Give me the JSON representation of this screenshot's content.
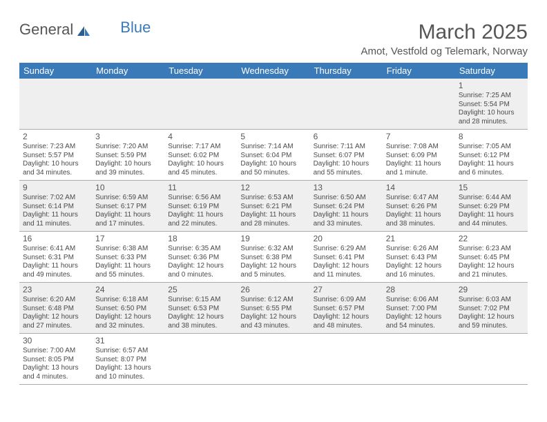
{
  "logo": {
    "general": "General",
    "blue": "Blue"
  },
  "title": "March 2025",
  "location": "Amot, Vestfold og Telemark, Norway",
  "day_headers": [
    "Sunday",
    "Monday",
    "Tuesday",
    "Wednesday",
    "Thursday",
    "Friday",
    "Saturday"
  ],
  "colors": {
    "header_bg": "#3a7ab8",
    "header_text": "#ffffff",
    "alt_row_bg": "#efefef",
    "text": "#4a4a4a",
    "rule": "#aaaaaa"
  },
  "weeks": [
    [
      null,
      null,
      null,
      null,
      null,
      null,
      {
        "n": "1",
        "sunrise": "Sunrise: 7:25 AM",
        "sunset": "Sunset: 5:54 PM",
        "daylight": "Daylight: 10 hours and 28 minutes."
      }
    ],
    [
      {
        "n": "2",
        "sunrise": "Sunrise: 7:23 AM",
        "sunset": "Sunset: 5:57 PM",
        "daylight": "Daylight: 10 hours and 34 minutes."
      },
      {
        "n": "3",
        "sunrise": "Sunrise: 7:20 AM",
        "sunset": "Sunset: 5:59 PM",
        "daylight": "Daylight: 10 hours and 39 minutes."
      },
      {
        "n": "4",
        "sunrise": "Sunrise: 7:17 AM",
        "sunset": "Sunset: 6:02 PM",
        "daylight": "Daylight: 10 hours and 45 minutes."
      },
      {
        "n": "5",
        "sunrise": "Sunrise: 7:14 AM",
        "sunset": "Sunset: 6:04 PM",
        "daylight": "Daylight: 10 hours and 50 minutes."
      },
      {
        "n": "6",
        "sunrise": "Sunrise: 7:11 AM",
        "sunset": "Sunset: 6:07 PM",
        "daylight": "Daylight: 10 hours and 55 minutes."
      },
      {
        "n": "7",
        "sunrise": "Sunrise: 7:08 AM",
        "sunset": "Sunset: 6:09 PM",
        "daylight": "Daylight: 11 hours and 1 minute."
      },
      {
        "n": "8",
        "sunrise": "Sunrise: 7:05 AM",
        "sunset": "Sunset: 6:12 PM",
        "daylight": "Daylight: 11 hours and 6 minutes."
      }
    ],
    [
      {
        "n": "9",
        "sunrise": "Sunrise: 7:02 AM",
        "sunset": "Sunset: 6:14 PM",
        "daylight": "Daylight: 11 hours and 11 minutes."
      },
      {
        "n": "10",
        "sunrise": "Sunrise: 6:59 AM",
        "sunset": "Sunset: 6:17 PM",
        "daylight": "Daylight: 11 hours and 17 minutes."
      },
      {
        "n": "11",
        "sunrise": "Sunrise: 6:56 AM",
        "sunset": "Sunset: 6:19 PM",
        "daylight": "Daylight: 11 hours and 22 minutes."
      },
      {
        "n": "12",
        "sunrise": "Sunrise: 6:53 AM",
        "sunset": "Sunset: 6:21 PM",
        "daylight": "Daylight: 11 hours and 28 minutes."
      },
      {
        "n": "13",
        "sunrise": "Sunrise: 6:50 AM",
        "sunset": "Sunset: 6:24 PM",
        "daylight": "Daylight: 11 hours and 33 minutes."
      },
      {
        "n": "14",
        "sunrise": "Sunrise: 6:47 AM",
        "sunset": "Sunset: 6:26 PM",
        "daylight": "Daylight: 11 hours and 38 minutes."
      },
      {
        "n": "15",
        "sunrise": "Sunrise: 6:44 AM",
        "sunset": "Sunset: 6:29 PM",
        "daylight": "Daylight: 11 hours and 44 minutes."
      }
    ],
    [
      {
        "n": "16",
        "sunrise": "Sunrise: 6:41 AM",
        "sunset": "Sunset: 6:31 PM",
        "daylight": "Daylight: 11 hours and 49 minutes."
      },
      {
        "n": "17",
        "sunrise": "Sunrise: 6:38 AM",
        "sunset": "Sunset: 6:33 PM",
        "daylight": "Daylight: 11 hours and 55 minutes."
      },
      {
        "n": "18",
        "sunrise": "Sunrise: 6:35 AM",
        "sunset": "Sunset: 6:36 PM",
        "daylight": "Daylight: 12 hours and 0 minutes."
      },
      {
        "n": "19",
        "sunrise": "Sunrise: 6:32 AM",
        "sunset": "Sunset: 6:38 PM",
        "daylight": "Daylight: 12 hours and 5 minutes."
      },
      {
        "n": "20",
        "sunrise": "Sunrise: 6:29 AM",
        "sunset": "Sunset: 6:41 PM",
        "daylight": "Daylight: 12 hours and 11 minutes."
      },
      {
        "n": "21",
        "sunrise": "Sunrise: 6:26 AM",
        "sunset": "Sunset: 6:43 PM",
        "daylight": "Daylight: 12 hours and 16 minutes."
      },
      {
        "n": "22",
        "sunrise": "Sunrise: 6:23 AM",
        "sunset": "Sunset: 6:45 PM",
        "daylight": "Daylight: 12 hours and 21 minutes."
      }
    ],
    [
      {
        "n": "23",
        "sunrise": "Sunrise: 6:20 AM",
        "sunset": "Sunset: 6:48 PM",
        "daylight": "Daylight: 12 hours and 27 minutes."
      },
      {
        "n": "24",
        "sunrise": "Sunrise: 6:18 AM",
        "sunset": "Sunset: 6:50 PM",
        "daylight": "Daylight: 12 hours and 32 minutes."
      },
      {
        "n": "25",
        "sunrise": "Sunrise: 6:15 AM",
        "sunset": "Sunset: 6:53 PM",
        "daylight": "Daylight: 12 hours and 38 minutes."
      },
      {
        "n": "26",
        "sunrise": "Sunrise: 6:12 AM",
        "sunset": "Sunset: 6:55 PM",
        "daylight": "Daylight: 12 hours and 43 minutes."
      },
      {
        "n": "27",
        "sunrise": "Sunrise: 6:09 AM",
        "sunset": "Sunset: 6:57 PM",
        "daylight": "Daylight: 12 hours and 48 minutes."
      },
      {
        "n": "28",
        "sunrise": "Sunrise: 6:06 AM",
        "sunset": "Sunset: 7:00 PM",
        "daylight": "Daylight: 12 hours and 54 minutes."
      },
      {
        "n": "29",
        "sunrise": "Sunrise: 6:03 AM",
        "sunset": "Sunset: 7:02 PM",
        "daylight": "Daylight: 12 hours and 59 minutes."
      }
    ],
    [
      {
        "n": "30",
        "sunrise": "Sunrise: 7:00 AM",
        "sunset": "Sunset: 8:05 PM",
        "daylight": "Daylight: 13 hours and 4 minutes."
      },
      {
        "n": "31",
        "sunrise": "Sunrise: 6:57 AM",
        "sunset": "Sunset: 8:07 PM",
        "daylight": "Daylight: 13 hours and 10 minutes."
      },
      null,
      null,
      null,
      null,
      null
    ]
  ]
}
